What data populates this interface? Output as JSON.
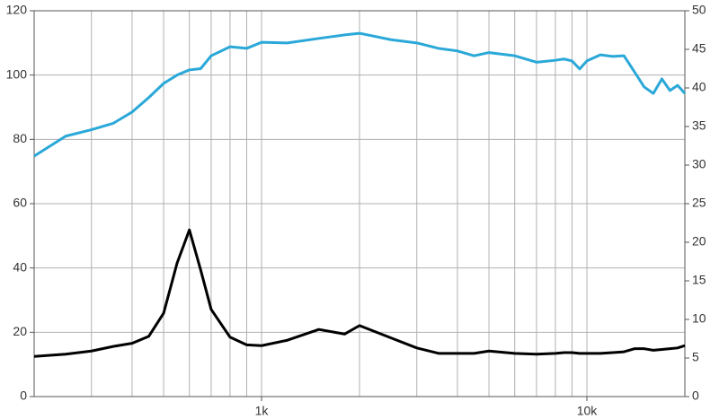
{
  "chart_data": {
    "type": "line",
    "x": [
      200,
      250,
      300,
      350,
      400,
      450,
      500,
      550,
      600,
      650,
      700,
      800,
      900,
      1000,
      1200,
      1500,
      1800,
      2000,
      2500,
      3000,
      3500,
      4000,
      4500,
      5000,
      6000,
      7000,
      8000,
      8500,
      9000,
      9500,
      10000,
      11000,
      12000,
      13000,
      14000,
      15000,
      16000,
      17000,
      18000,
      19000,
      20000
    ],
    "series": [
      {
        "color": "#2aa8d8",
        "values": [
          74.8,
          81,
          83,
          85,
          88.5,
          93,
          97.4,
          100,
          101.6,
          102,
          106,
          108.8,
          108.3,
          110.2,
          110,
          111.4,
          112.5,
          113,
          111,
          110,
          108.3,
          107.5,
          106,
          107,
          106,
          104,
          104.6,
          105,
          104.4,
          101.9,
          104.4,
          106.3,
          105.8,
          106,
          101,
          96.3,
          94.3,
          98.8,
          95.2,
          96.8,
          94.3
        ]
      },
      {
        "color": "#000000",
        "axis": "y2",
        "values": [
          5.2,
          5.5,
          5.9,
          6.5,
          6.9,
          7.8,
          10.8,
          17.3,
          21.6,
          16.4,
          11.3,
          7.7,
          6.7,
          6.6,
          7.3,
          8.7,
          8.1,
          9.2,
          7.6,
          6.3,
          5.6,
          5.6,
          5.6,
          5.9,
          5.6,
          5.5,
          5.6,
          5.7,
          5.7,
          5.6,
          5.6,
          5.6,
          5.7,
          5.8,
          6.2,
          6.2,
          6.0,
          6.1,
          6.2,
          6.3,
          6.6
        ]
      }
    ],
    "xscale": "log",
    "xlim": [
      200,
      20000
    ],
    "xticks": [
      {
        "value": 1000,
        "label": "1k"
      },
      {
        "value": 10000,
        "label": "10k"
      }
    ],
    "xgrid": [
      200,
      300,
      400,
      500,
      600,
      700,
      800,
      900,
      1000,
      2000,
      3000,
      4000,
      5000,
      6000,
      7000,
      8000,
      9000,
      10000,
      20000
    ],
    "ylim": [
      0,
      120
    ],
    "yticks": [
      0,
      20,
      40,
      60,
      80,
      100,
      120
    ],
    "y2lim": [
      0,
      50
    ],
    "y2ticks": [
      0,
      5,
      10,
      15,
      20,
      25,
      30,
      35,
      40,
      45,
      50
    ],
    "grid": true
  }
}
